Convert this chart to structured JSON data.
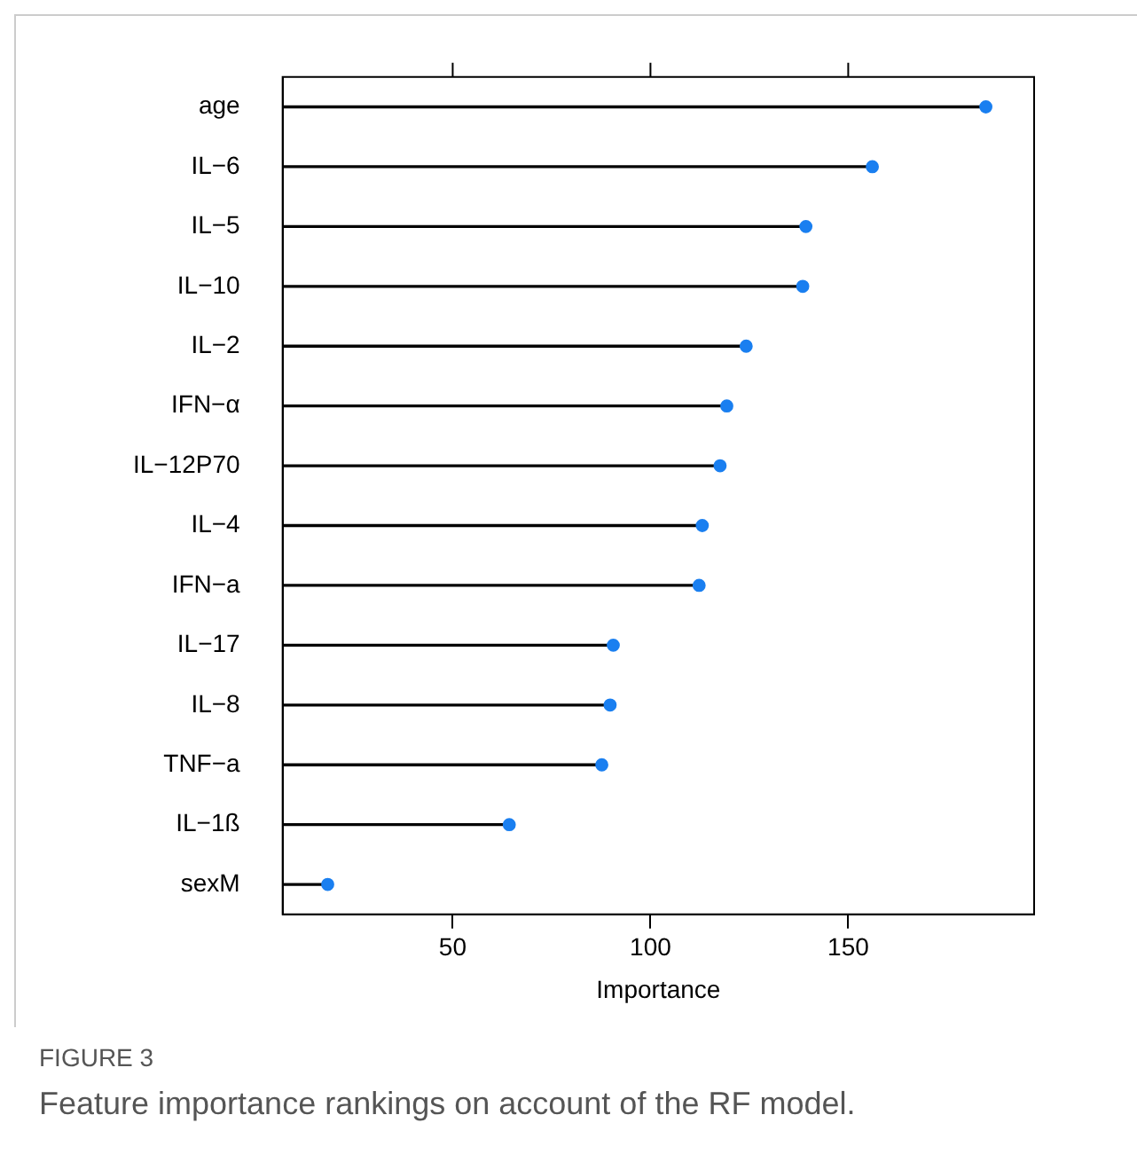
{
  "chart_data": {
    "type": "lollipop",
    "orientation": "horizontal",
    "xlabel": "Importance",
    "categories": [
      "age",
      "IL−6",
      "IL−5",
      "IL−10",
      "IL−2",
      "IFN−α",
      "IL−12P70",
      "IL−4",
      "IFN−a",
      "IL−17",
      "IL−8",
      "TNF−a",
      "IL−1ß",
      "sexM"
    ],
    "values": [
      184.8,
      156.1,
      139.3,
      138.5,
      124.2,
      119.3,
      117.6,
      113.1,
      112.3,
      90.6,
      89.8,
      87.7,
      64.3,
      18.4
    ],
    "color": "#1a7ff0",
    "xlim": [
      7,
      197
    ],
    "xticks": [
      50,
      100,
      150
    ],
    "grid": false,
    "legend": false,
    "marker": "circle",
    "annotations": [
      "FIGURE 3",
      "Feature importance rankings on account of the RF model."
    ]
  }
}
